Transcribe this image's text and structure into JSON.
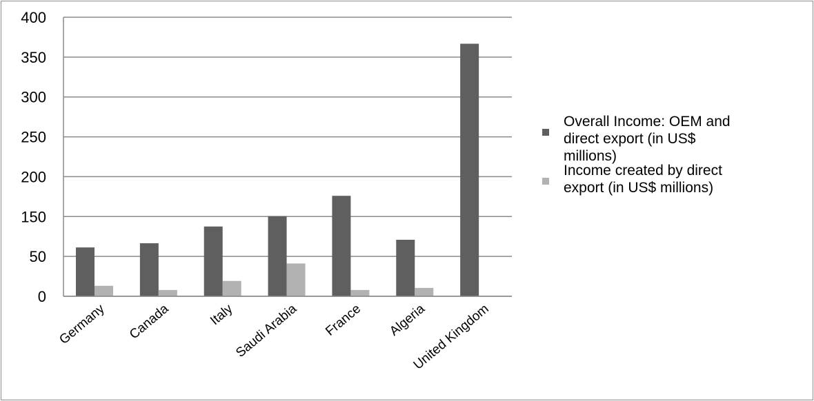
{
  "chart_data": {
    "type": "bar",
    "categories": [
      "Germany",
      "Canada",
      "Italy",
      "Saudi Arabia",
      "France",
      "Algeria",
      "United Kingdom"
    ],
    "series": [
      {
        "name": "Overall Income: OEM and direct export (in US$ millions)",
        "values": [
          70,
          76,
          100,
          115,
          144,
          81,
          362
        ],
        "color": "#5f5f5f"
      },
      {
        "name": "Income created by direct export (in US$ millions)",
        "values": [
          15,
          9,
          22,
          47,
          9,
          12,
          0
        ],
        "color": "#b2b2b2"
      }
    ],
    "y_ticks": [
      "0",
      "50",
      "150",
      "200",
      "250",
      "300",
      "350",
      "400"
    ],
    "ylim": [
      0,
      400
    ],
    "grid": true,
    "legend_position": "right"
  }
}
